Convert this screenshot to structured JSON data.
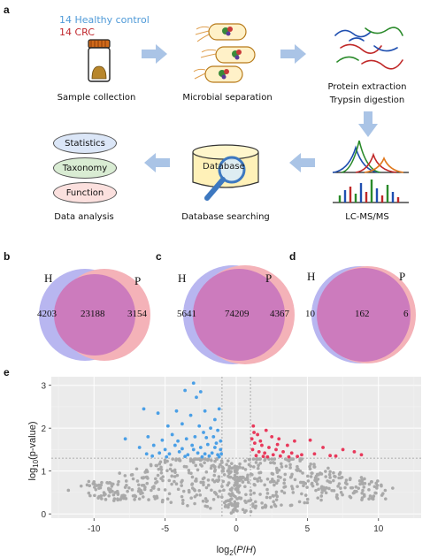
{
  "panels": {
    "a": "a",
    "b": "b",
    "c": "c",
    "d": "d",
    "e": "e"
  },
  "workflow": {
    "legend_healthy": "14 Healthy control",
    "legend_crc": "14 CRC",
    "sample_collection": "Sample collection",
    "microbial_separation": "Microbial separation",
    "protein_extraction_1": "Protein extraction",
    "protein_extraction_2": "Trypsin digestion",
    "data_analysis": "Data analysis",
    "database_searching": "Database searching",
    "lcms": "LC-MS/MS",
    "database_label": "Database",
    "pills": [
      "Statistics",
      "Taxonomy",
      "Function"
    ],
    "colors": {
      "healthy": "#4f9ad8",
      "crc": "#c0272d",
      "arrow": "#aac4e6"
    }
  },
  "venns": [
    {
      "id": "b",
      "left_label": "H",
      "right_label": "P",
      "left_only": "4203",
      "shared": "23188",
      "right_only": "3154"
    },
    {
      "id": "c",
      "left_label": "H",
      "right_label": "P",
      "left_only": "5641",
      "shared": "74209",
      "right_only": "4367"
    },
    {
      "id": "d",
      "left_label": "H",
      "right_label": "P",
      "left_only": "10",
      "shared": "162",
      "right_only": "6"
    }
  ],
  "venn_colors": {
    "H": "#b8b6f0",
    "P": "#f4b2b8",
    "overlap": "#cc7bbd"
  },
  "chart_data": {
    "type": "scatter",
    "title": "",
    "xlabel": "log2(P/H)",
    "ylabel": "log10(p-value)",
    "xlim": [
      -13,
      13
    ],
    "ylim": [
      -0.1,
      3.2
    ],
    "xticks": [
      -10,
      -5,
      0,
      5,
      10
    ],
    "yticks": [
      0,
      1,
      2,
      3
    ],
    "grid": true,
    "thresholds": {
      "x": [
        -1,
        1
      ],
      "y": 1.3
    },
    "colors": {
      "down": "#4a9fe6",
      "up": "#e8395b",
      "ns": "#a9a9a9",
      "panel_bg": "#ebebeb"
    },
    "series": [
      {
        "group": "down",
        "points": [
          [
            -3,
            3.05
          ],
          [
            -3.6,
            2.88
          ],
          [
            -2.5,
            2.85
          ],
          [
            -2.8,
            2.72
          ],
          [
            -6.5,
            2.45
          ],
          [
            -5.5,
            2.35
          ],
          [
            -4.2,
            2.4
          ],
          [
            -3.2,
            2.3
          ],
          [
            -2.2,
            2.4
          ],
          [
            -1.5,
            2.2
          ],
          [
            -1.2,
            2.45
          ],
          [
            -4.8,
            2.05
          ],
          [
            -3.8,
            2.1
          ],
          [
            -2.6,
            2.05
          ],
          [
            -1.8,
            2.0
          ],
          [
            -1.3,
            1.95
          ],
          [
            -7.8,
            1.75
          ],
          [
            -6.2,
            1.8
          ],
          [
            -5.2,
            1.72
          ],
          [
            -4.5,
            1.85
          ],
          [
            -3.5,
            1.75
          ],
          [
            -2.9,
            1.8
          ],
          [
            -2.1,
            1.78
          ],
          [
            -1.6,
            1.8
          ],
          [
            -1.1,
            1.7
          ],
          [
            -6.8,
            1.55
          ],
          [
            -5.8,
            1.6
          ],
          [
            -5.0,
            1.5
          ],
          [
            -4.3,
            1.6
          ],
          [
            -3.8,
            1.52
          ],
          [
            -3.1,
            1.6
          ],
          [
            -2.5,
            1.55
          ],
          [
            -2.0,
            1.62
          ],
          [
            -1.5,
            1.55
          ],
          [
            -1.1,
            1.5
          ],
          [
            -6.3,
            1.4
          ],
          [
            -5.4,
            1.42
          ],
          [
            -4.7,
            1.4
          ],
          [
            -4.0,
            1.45
          ],
          [
            -3.4,
            1.38
          ],
          [
            -2.7,
            1.42
          ],
          [
            -2.2,
            1.4
          ],
          [
            -1.7,
            1.42
          ],
          [
            -1.3,
            1.38
          ],
          [
            -1.05,
            1.4
          ],
          [
            -4.9,
            1.33
          ],
          [
            -3.6,
            1.34
          ],
          [
            -2.4,
            1.33
          ],
          [
            -1.9,
            1.35
          ],
          [
            -1.2,
            1.33
          ],
          [
            -5.9,
            1.35
          ],
          [
            -3.0,
            1.5
          ],
          [
            -1.4,
            1.65
          ],
          [
            -2.3,
            1.9
          ],
          [
            -4.1,
            1.7
          ]
        ]
      },
      {
        "group": "up",
        "points": [
          [
            1.2,
            2.05
          ],
          [
            1.5,
            1.85
          ],
          [
            2.1,
            1.95
          ],
          [
            2.5,
            1.8
          ],
          [
            3.0,
            1.75
          ],
          [
            3.6,
            1.6
          ],
          [
            4.1,
            1.7
          ],
          [
            5.2,
            1.72
          ],
          [
            6.1,
            1.55
          ],
          [
            7.5,
            1.5
          ],
          [
            8.3,
            1.45
          ],
          [
            1.1,
            1.75
          ],
          [
            1.3,
            1.65
          ],
          [
            1.8,
            1.6
          ],
          [
            2.3,
            1.55
          ],
          [
            2.8,
            1.5
          ],
          [
            3.3,
            1.45
          ],
          [
            3.9,
            1.42
          ],
          [
            4.6,
            1.38
          ],
          [
            5.5,
            1.4
          ],
          [
            6.6,
            1.36
          ],
          [
            1.15,
            1.5
          ],
          [
            1.6,
            1.45
          ],
          [
            2.0,
            1.42
          ],
          [
            2.6,
            1.38
          ],
          [
            3.1,
            1.35
          ],
          [
            3.7,
            1.33
          ],
          [
            4.3,
            1.34
          ],
          [
            1.4,
            1.36
          ],
          [
            1.9,
            1.34
          ],
          [
            2.2,
            1.33
          ],
          [
            1.25,
            1.9
          ],
          [
            1.7,
            1.7
          ],
          [
            2.9,
            1.62
          ],
          [
            7.0,
            1.35
          ],
          [
            8.8,
            1.38
          ]
        ]
      }
    ],
    "ns_points": [
      [
        -11.8,
        0.55
      ],
      [
        -10.9,
        0.65
      ],
      [
        -10.0,
        0.75
      ],
      [
        -9.0,
        0.72
      ],
      [
        -8.2,
        0.95
      ],
      [
        -7.8,
        0.62
      ],
      [
        -7.0,
        1.05
      ],
      [
        -6.5,
        0.85
      ],
      [
        -6.0,
        1.15
      ],
      [
        -5.5,
        0.9
      ],
      [
        -5.0,
        1.2
      ],
      [
        -4.5,
        1.0
      ],
      [
        -4.0,
        1.25
      ],
      [
        -3.5,
        1.1
      ],
      [
        -3.0,
        1.2
      ],
      [
        -2.5,
        1.15
      ],
      [
        -2.0,
        1.25
      ],
      [
        -1.5,
        1.1
      ],
      [
        -1.0,
        1.2
      ],
      [
        -0.6,
        1.0
      ],
      [
        -0.3,
        0.6
      ],
      [
        0.2,
        0.5
      ],
      [
        0.5,
        0.85
      ],
      [
        0.9,
        1.15
      ],
      [
        1.4,
        1.2
      ],
      [
        2.0,
        1.25
      ],
      [
        2.6,
        1.2
      ],
      [
        3.2,
        1.1
      ],
      [
        3.8,
        1.15
      ],
      [
        4.5,
        1.0
      ],
      [
        5.2,
        1.05
      ],
      [
        5.9,
        0.95
      ],
      [
        6.6,
        0.85
      ],
      [
        7.3,
        0.95
      ],
      [
        8.0,
        0.8
      ],
      [
        8.8,
        0.85
      ],
      [
        9.5,
        0.75
      ],
      [
        10.2,
        0.65
      ],
      [
        11.0,
        0.6
      ],
      [
        -9.5,
        0.42
      ],
      [
        -8.5,
        0.5
      ],
      [
        -5.8,
        0.6
      ],
      [
        -4.2,
        0.7
      ],
      [
        6.2,
        0.55
      ],
      [
        9.0,
        0.45
      ],
      [
        10.5,
        0.35
      ],
      [
        -6.8,
        0.35
      ],
      [
        4.0,
        0.5
      ]
    ],
    "ns_cloud": {
      "description": "dense grey cloud of non-significant proteins",
      "approx_count": 600
    }
  }
}
